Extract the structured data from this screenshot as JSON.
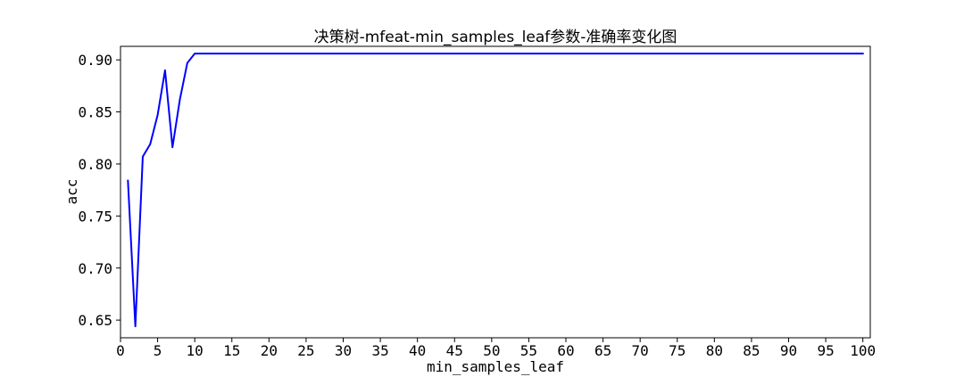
{
  "chart_data": {
    "type": "line",
    "title": "决策树-mfeat-min_samples_leaf参数-准确率变化图",
    "xlabel": "min_samples_leaf",
    "ylabel": "acc",
    "xlim": [
      0,
      101
    ],
    "ylim": [
      0.633,
      0.913
    ],
    "xticks": [
      0,
      5,
      10,
      15,
      20,
      25,
      30,
      35,
      40,
      45,
      50,
      55,
      60,
      65,
      70,
      75,
      80,
      85,
      90,
      95,
      100
    ],
    "yticks": [
      0.65,
      0.7,
      0.75,
      0.8,
      0.85,
      0.9
    ],
    "ytick_labels": [
      "0.65",
      "0.70",
      "0.75",
      "0.80",
      "0.85",
      "0.90"
    ],
    "grid": false,
    "series": [
      {
        "color": "#0000ff",
        "x": [
          1,
          2,
          3,
          4,
          5,
          6,
          7,
          8,
          9,
          10,
          100
        ],
        "y": [
          0.784,
          0.644,
          0.807,
          0.819,
          0.847,
          0.89,
          0.816,
          0.862,
          0.897,
          0.906,
          0.906
        ]
      }
    ]
  }
}
